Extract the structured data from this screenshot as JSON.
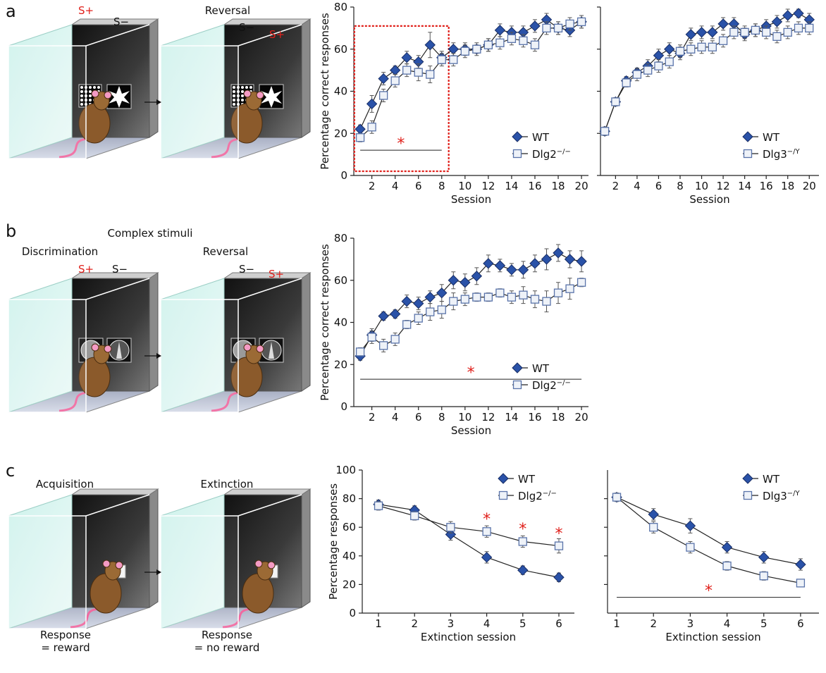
{
  "figure": {
    "panels": [
      {
        "label": "a",
        "texts": [
          "S+",
          "S−",
          "Reversal",
          "S−",
          "S+"
        ]
      },
      {
        "label": "b",
        "texts": [
          "Complex stimuli",
          "Discrimination",
          "S+",
          "S−",
          "Reversal",
          "S−",
          "S+"
        ]
      },
      {
        "label": "c",
        "texts": [
          "Acquisition",
          "Extinction",
          "Response",
          "= reward",
          "Response",
          "= no reward"
        ]
      }
    ]
  },
  "chart_data": [
    {
      "type": "line",
      "xlabel": "Session",
      "ylabel": "Percentage correct responses",
      "x": [
        1,
        2,
        3,
        4,
        5,
        6,
        7,
        8,
        9,
        10,
        11,
        12,
        13,
        14,
        15,
        16,
        17,
        18,
        19,
        20
      ],
      "xlim": [
        0.45,
        20.6
      ],
      "xticks": [
        2,
        4,
        6,
        8,
        10,
        12,
        14,
        16,
        18,
        20
      ],
      "ylim": [
        0,
        80
      ],
      "yticks": [
        0,
        20,
        40,
        60,
        80
      ],
      "show_ytick_labels": true,
      "legend": "lower right",
      "series": [
        {
          "name": "WT",
          "color": "#23479b",
          "marker": "diamond",
          "marker_fill": "#2a52a8",
          "values": [
            22,
            34,
            46,
            50,
            56,
            54,
            62,
            56,
            60,
            60,
            60,
            62,
            69,
            68,
            68,
            71,
            74,
            70,
            69,
            73
          ],
          "errors": [
            2,
            4,
            3,
            2,
            3,
            3,
            6,
            3,
            3,
            3,
            3,
            3,
            3,
            3,
            3,
            3,
            3,
            3,
            3,
            3
          ]
        },
        {
          "name": "Dlg2",
          "sup": "−/−",
          "color": "#5a74aa",
          "marker": "square",
          "marker_fill": "#eef2f8",
          "values": [
            18,
            23,
            38,
            45,
            50,
            49,
            48,
            55,
            55,
            59,
            60,
            62,
            63,
            65,
            64,
            62,
            70,
            70,
            72,
            73
          ],
          "errors": [
            2,
            3,
            3,
            3,
            3,
            4,
            4,
            3,
            3,
            3,
            2,
            3,
            3,
            3,
            3,
            3,
            3,
            3,
            3,
            3
          ]
        }
      ],
      "significance": [
        {
          "text": "*",
          "x": [
            1,
            8
          ],
          "y": 12
        }
      ],
      "highlight": {
        "x": [
          0.5,
          8.6
        ],
        "y": [
          2,
          71
        ],
        "color": "#e0201b"
      }
    },
    {
      "type": "line",
      "xlabel": "Session",
      "x": [
        1,
        2,
        3,
        4,
        5,
        6,
        7,
        8,
        9,
        10,
        11,
        12,
        13,
        14,
        15,
        16,
        17,
        18,
        19,
        20
      ],
      "xlim": [
        0.6,
        20.9
      ],
      "xticks": [
        2,
        4,
        6,
        8,
        10,
        12,
        14,
        16,
        18,
        20
      ],
      "ylim": [
        0,
        80
      ],
      "yticks": [
        0,
        20,
        40,
        60,
        80
      ],
      "show_ytick_labels": false,
      "legend": "lower right",
      "series": [
        {
          "name": "WT",
          "color": "#23479b",
          "marker": "diamond",
          "marker_fill": "#2a52a8",
          "values": [
            21,
            35,
            45,
            49,
            52,
            57,
            60,
            58,
            67,
            68,
            68,
            72,
            72,
            67,
            69,
            71,
            73,
            76,
            77,
            74
          ],
          "errors": [
            2,
            2,
            2,
            2,
            3,
            3,
            3,
            3,
            3,
            3,
            3,
            3,
            3,
            3,
            3,
            3,
            3,
            3,
            2,
            3
          ]
        },
        {
          "name": "Dlg3",
          "sup": "−/Y",
          "color": "#5a74aa",
          "marker": "square",
          "marker_fill": "#eef2f8",
          "values": [
            21,
            35,
            44,
            48,
            50,
            52,
            54,
            59,
            60,
            61,
            61,
            64,
            68,
            68,
            69,
            68,
            66,
            68,
            70,
            70
          ],
          "errors": [
            2,
            2,
            2,
            3,
            3,
            3,
            3,
            3,
            3,
            3,
            3,
            3,
            3,
            3,
            3,
            3,
            3,
            3,
            3,
            3
          ]
        }
      ]
    },
    {
      "type": "line",
      "xlabel": "Session",
      "ylabel": "Percentage correct responses",
      "x": [
        1,
        2,
        3,
        4,
        5,
        6,
        7,
        8,
        9,
        10,
        11,
        12,
        13,
        14,
        15,
        16,
        17,
        18,
        19,
        20
      ],
      "xlim": [
        0.45,
        20.6
      ],
      "xticks": [
        2,
        4,
        6,
        8,
        10,
        12,
        14,
        16,
        18,
        20
      ],
      "ylim": [
        0,
        80
      ],
      "yticks": [
        0,
        20,
        40,
        60,
        80
      ],
      "show_ytick_labels": true,
      "legend": "lower right",
      "series": [
        {
          "name": "WT",
          "color": "#23479b",
          "marker": "diamond",
          "marker_fill": "#2a52a8",
          "values": [
            24,
            34,
            43,
            44,
            50,
            49,
            52,
            54,
            60,
            59,
            62,
            68,
            67,
            65,
            65,
            68,
            70,
            73,
            70,
            69
          ],
          "errors": [
            2,
            3,
            2,
            2,
            3,
            3,
            3,
            4,
            4,
            4,
            4,
            4,
            3,
            3,
            4,
            4,
            5,
            4,
            4,
            5
          ]
        },
        {
          "name": "Dlg2",
          "sup": "−/−",
          "color": "#5a74aa",
          "marker": "square",
          "marker_fill": "#eef2f8",
          "values": [
            26,
            33,
            29,
            32,
            39,
            42,
            45,
            46,
            50,
            51,
            52,
            52,
            54,
            52,
            53,
            51,
            50,
            54,
            56,
            59
          ],
          "errors": [
            2,
            3,
            3,
            3,
            2,
            3,
            4,
            4,
            4,
            3,
            2,
            2,
            2,
            3,
            4,
            4,
            5,
            5,
            5,
            2
          ]
        }
      ],
      "significance": [
        {
          "text": "*",
          "x": [
            1,
            20
          ],
          "y": 13
        }
      ]
    },
    {
      "type": "line",
      "xlabel": "Extinction session",
      "ylabel": "Percentage responses",
      "x": [
        1,
        2,
        3,
        4,
        5,
        6
      ],
      "xlim": [
        0.55,
        6.43
      ],
      "xticks": [
        1,
        2,
        3,
        4,
        5,
        6
      ],
      "ylim": [
        0,
        100
      ],
      "yticks": [
        0,
        20,
        40,
        60,
        80,
        100
      ],
      "show_ytick_labels": true,
      "legend": "upper right",
      "series": [
        {
          "name": "WT",
          "color": "#23479b",
          "marker": "diamond",
          "marker_fill": "#2a52a8",
          "values": [
            76,
            72,
            55,
            39,
            30,
            25
          ],
          "errors": [
            3,
            3,
            4,
            4,
            3,
            3
          ]
        },
        {
          "name": "Dlg2",
          "sup": "−/−",
          "color": "#5a74aa",
          "marker": "square",
          "marker_fill": "#eef2f8",
          "values": [
            75,
            68,
            60,
            57,
            50,
            47
          ],
          "errors": [
            3,
            3,
            4,
            4,
            4,
            5
          ]
        }
      ],
      "annotations": [
        {
          "text": "*",
          "x": 4,
          "y": 66
        },
        {
          "text": "*",
          "x": 5,
          "y": 59
        },
        {
          "text": "*",
          "x": 6,
          "y": 56
        }
      ]
    },
    {
      "type": "line",
      "xlabel": "Extinction session",
      "x": [
        1,
        2,
        3,
        4,
        5,
        6
      ],
      "xlim": [
        0.75,
        6.5
      ],
      "xticks": [
        1,
        2,
        3,
        4,
        5,
        6
      ],
      "ylim": [
        0,
        100
      ],
      "yticks": [
        20,
        40,
        60,
        80
      ],
      "show_ytick_labels": false,
      "legend": "upper right",
      "series": [
        {
          "name": "WT",
          "color": "#23479b",
          "marker": "diamond",
          "marker_fill": "#2a52a8",
          "values": [
            81,
            69,
            61,
            46,
            39,
            34
          ],
          "errors": [
            3,
            4,
            5,
            4,
            4,
            4
          ]
        },
        {
          "name": "Dlg3",
          "sup": "−/Y",
          "color": "#5a74aa",
          "marker": "square",
          "marker_fill": "#eef2f8",
          "values": [
            81,
            60,
            46,
            33,
            26,
            21
          ],
          "errors": [
            3,
            4,
            4,
            3,
            3,
            2
          ]
        }
      ],
      "significance": [
        {
          "text": "*",
          "x": [
            1,
            6
          ],
          "y": 11
        }
      ]
    }
  ]
}
